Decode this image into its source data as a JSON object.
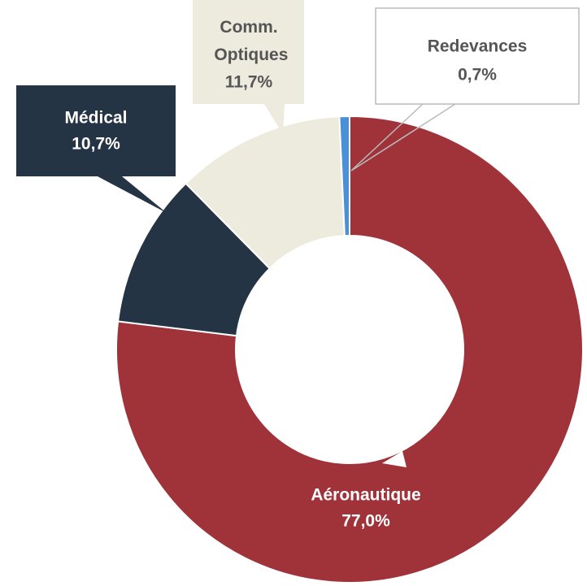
{
  "chart_data": {
    "type": "donut",
    "categories": [
      "Aéronautique",
      "Médical",
      "Comm. Optiques",
      "Redevances"
    ],
    "values": [
      77.0,
      10.7,
      11.7,
      0.7
    ],
    "value_labels": [
      "77,0%",
      "10,7%",
      "11,7%",
      "0,7%"
    ],
    "colors": [
      "#a0333a",
      "#253444",
      "#ecebdd",
      "#4a90d9"
    ]
  }
}
